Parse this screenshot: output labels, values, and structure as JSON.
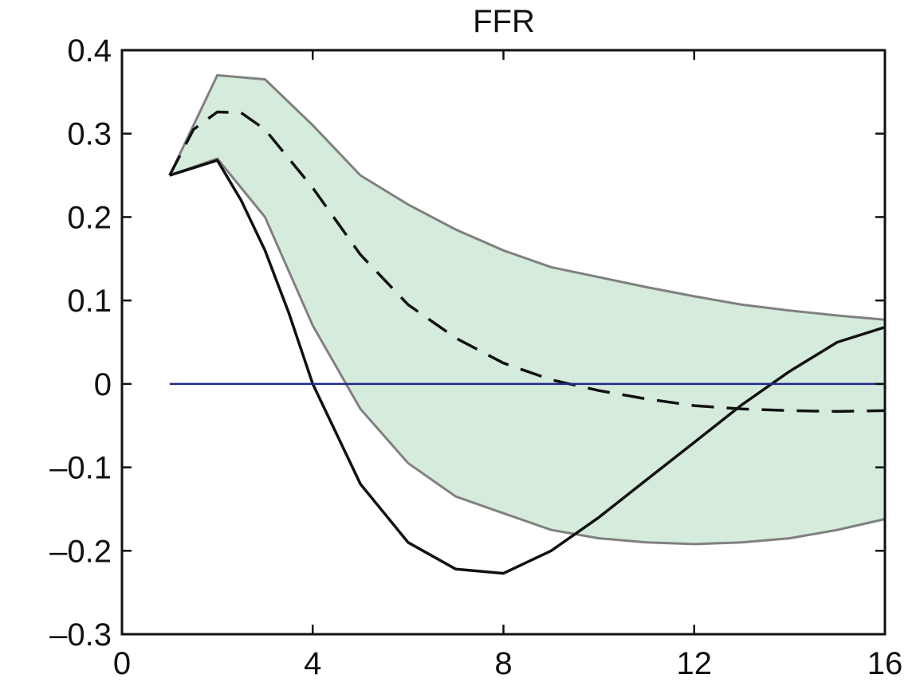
{
  "chart_data": {
    "type": "line",
    "title": "FFR",
    "xlabel": "",
    "ylabel": "",
    "xlim": [
      0,
      16
    ],
    "ylim": [
      -0.3,
      0.4
    ],
    "x_ticks": [
      0,
      4,
      8,
      12,
      16
    ],
    "x_tick_labels": [
      "0",
      "4",
      "8",
      "12",
      "16"
    ],
    "y_ticks": [
      0.4,
      0.3,
      0.2,
      0.1,
      0,
      -0.1,
      -0.2,
      -0.3
    ],
    "y_tick_labels": [
      "0.4",
      "0.3",
      "0.2",
      "0.1",
      "0",
      "–0.1",
      "–0.2",
      "–0.3"
    ],
    "grid": false,
    "colors": {
      "band_fill": "#d5ebdc",
      "band_edge": "#808080",
      "solid": "#111111",
      "dashed": "#111111",
      "zero_line": "#1f2a8a"
    },
    "band": {
      "x": [
        1,
        2,
        3,
        4,
        5,
        6,
        7,
        8,
        9,
        10,
        11,
        12,
        13,
        14,
        15,
        16
      ],
      "upper": [
        0.25,
        0.37,
        0.365,
        0.31,
        0.25,
        0.215,
        0.185,
        0.16,
        0.14,
        0.128,
        0.116,
        0.105,
        0.095,
        0.088,
        0.082,
        0.077
      ],
      "lower": [
        0.25,
        0.27,
        0.2,
        0.07,
        -0.03,
        -0.095,
        -0.135,
        -0.155,
        -0.175,
        -0.185,
        -0.19,
        -0.192,
        -0.19,
        -0.185,
        -0.175,
        -0.162
      ]
    },
    "series": [
      {
        "style": "solid",
        "x": [
          1,
          2,
          2.5,
          3,
          3.5,
          4,
          5,
          6,
          7,
          8,
          9,
          10,
          11,
          12,
          13,
          14,
          15,
          16
        ],
        "values": [
          0.25,
          0.268,
          0.22,
          0.16,
          0.085,
          0.0,
          -0.12,
          -0.19,
          -0.222,
          -0.227,
          -0.2,
          -0.16,
          -0.115,
          -0.07,
          -0.025,
          0.015,
          0.05,
          0.068
        ]
      },
      {
        "style": "dashed",
        "x": [
          1,
          1.5,
          2,
          2.5,
          3,
          4,
          5,
          6,
          7,
          8,
          9,
          10,
          11,
          12,
          13,
          14,
          15,
          16
        ],
        "values": [
          0.25,
          0.305,
          0.326,
          0.325,
          0.305,
          0.235,
          0.155,
          0.095,
          0.055,
          0.025,
          0.005,
          -0.008,
          -0.018,
          -0.026,
          -0.03,
          -0.032,
          -0.033,
          -0.032
        ]
      },
      {
        "style": "zero",
        "x": [
          1,
          16
        ],
        "values": [
          0,
          0
        ]
      }
    ]
  }
}
